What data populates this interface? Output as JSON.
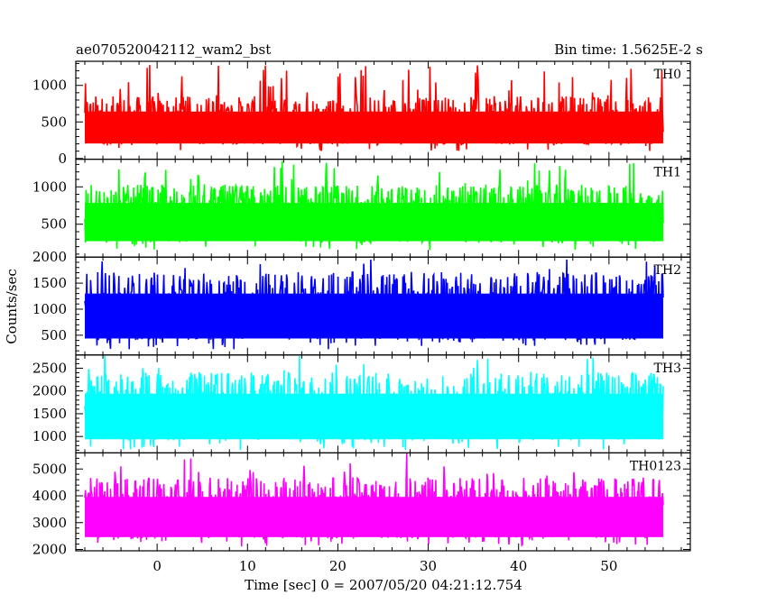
{
  "header": {
    "left_title": "ae070520042112_wam2_bst",
    "right_title": "Bin time: 1.5625E-2 s"
  },
  "chart_data": {
    "type": "line",
    "xlabel": "Time [sec] 0 = 2007/05/20 04:21:12.754",
    "ylabel": "Counts/sec",
    "xlim": [
      -9,
      59
    ],
    "x_range_data": [
      -8,
      56
    ],
    "xticks": [
      0,
      10,
      20,
      30,
      40,
      50
    ],
    "panels": [
      {
        "name": "TH0",
        "color": "#ff0000",
        "ylim": [
          -10,
          1330
        ],
        "yticks": [
          0,
          500,
          1000
        ],
        "mean": 450,
        "low": 100,
        "high": 1300
      },
      {
        "name": "TH1",
        "color": "#00ff00",
        "ylim": [
          60,
          1370
        ],
        "yticks": [
          500,
          1000
        ],
        "mean": 560,
        "low": 150,
        "high": 1370
      },
      {
        "name": "TH2",
        "color": "#0000ff",
        "ylim": [
          120,
          2000
        ],
        "yticks": [
          500,
          1000,
          1500,
          2000
        ],
        "mean": 920,
        "low": 230,
        "high": 2000
      },
      {
        "name": "TH3",
        "color": "#00ffff",
        "ylim": [
          640,
          2790
        ],
        "yticks": [
          1000,
          1500,
          2000,
          2500
        ],
        "mean": 1500,
        "low": 700,
        "high": 2790
      },
      {
        "name": "TH0123",
        "color": "#ff00ff",
        "ylim": [
          1950,
          5600
        ],
        "yticks": [
          2000,
          3000,
          4000,
          5000
        ],
        "mean": 3300,
        "low": 2100,
        "high": 5600
      }
    ]
  }
}
